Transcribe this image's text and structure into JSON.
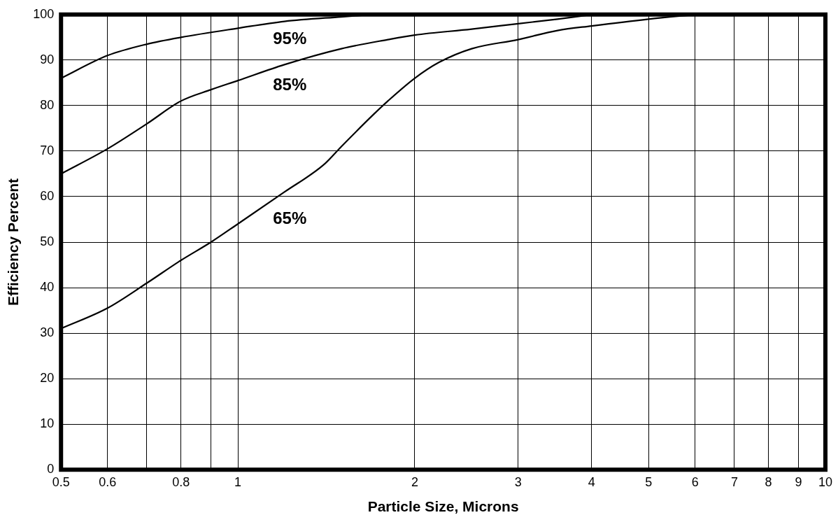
{
  "chart_data": {
    "type": "line",
    "xlabel": "Particle Size, Microns",
    "ylabel": "Efficiency Percent",
    "log": "x",
    "grid": true,
    "legend": false,
    "marker": "none",
    "line_style": "solid",
    "xlim": [
      0.5,
      10
    ],
    "ylim": [
      0,
      100
    ],
    "xticks": [
      0.5,
      0.6,
      {
        "value": 0.7,
        "label": null
      },
      0.8,
      {
        "value": 0.9,
        "label": null
      },
      1,
      2,
      3,
      4,
      5,
      6,
      7,
      8,
      9,
      10
    ],
    "yticks": [
      0,
      10,
      20,
      30,
      40,
      50,
      60,
      70,
      80,
      90,
      100
    ],
    "series": [
      {
        "name": "95%",
        "color": "#000000",
        "x": [
          0.5,
          0.6,
          0.7,
          0.8,
          1,
          1.2,
          1.5,
          1.7
        ],
        "values": [
          86,
          91,
          93.5,
          95,
          97,
          98.5,
          99.5,
          100
        ]
      },
      {
        "name": "85%",
        "color": "#000000",
        "x": [
          0.5,
          0.6,
          0.7,
          0.8,
          0.9,
          1,
          1.2,
          1.5,
          1.8,
          2,
          2.5,
          3,
          3.5,
          4
        ],
        "values": [
          65,
          70.5,
          76,
          81,
          83.5,
          85.5,
          89,
          92.5,
          94.5,
          95.5,
          96.8,
          98,
          99,
          100
        ]
      },
      {
        "name": "65%",
        "color": "#000000",
        "x": [
          0.5,
          0.6,
          0.7,
          0.8,
          0.9,
          1,
          1.2,
          1.4,
          1.5,
          1.7,
          1.8,
          2,
          2.2,
          2.5,
          3,
          3.5,
          4,
          5,
          6
        ],
        "values": [
          31,
          35.5,
          41,
          46,
          50,
          54,
          61,
          67,
          71,
          78,
          81,
          86,
          89.5,
          92.5,
          94.5,
          96.5,
          97.5,
          99,
          100
        ]
      }
    ]
  }
}
